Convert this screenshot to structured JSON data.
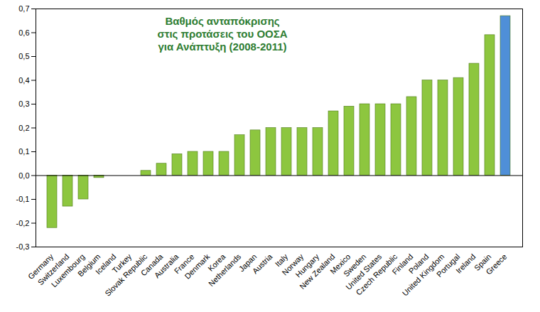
{
  "chart_data": {
    "type": "bar",
    "title": "Βαθμός ανταπόκρισης\nστις προτάσεις του ΟΟΣΑ\nγια Ανάπτυξη (2008-2011)",
    "categories": [
      "Germany",
      "Switzerland",
      "Luxembourg",
      "Belgium",
      "Iceland",
      "Turkey",
      "Slovak Republic",
      "Canada",
      "Australia",
      "France",
      "Denmark",
      "Korea",
      "Netherlands",
      "Japan",
      "Austria",
      "Italy",
      "Norway",
      "Hungary",
      "New Zealand",
      "Mexico",
      "Sweden",
      "United States",
      "Czech Republic",
      "Finland",
      "Poland",
      "United Kingdom",
      "Portugal",
      "Ireland",
      "Spain",
      "Greece"
    ],
    "values": [
      -0.22,
      -0.13,
      -0.1,
      -0.01,
      0,
      0,
      0.02,
      0.05,
      0.09,
      0.1,
      0.1,
      0.1,
      0.17,
      0.19,
      0.2,
      0.2,
      0.2,
      0.2,
      0.27,
      0.29,
      0.3,
      0.3,
      0.3,
      0.33,
      0.4,
      0.4,
      0.41,
      0.47,
      0.59,
      0.67
    ],
    "colors": [
      "#8dc63f",
      "#8dc63f",
      "#8dc63f",
      "#8dc63f",
      "#8dc63f",
      "#8dc63f",
      "#8dc63f",
      "#8dc63f",
      "#8dc63f",
      "#8dc63f",
      "#8dc63f",
      "#8dc63f",
      "#8dc63f",
      "#8dc63f",
      "#8dc63f",
      "#8dc63f",
      "#8dc63f",
      "#8dc63f",
      "#8dc63f",
      "#8dc63f",
      "#8dc63f",
      "#8dc63f",
      "#8dc63f",
      "#8dc63f",
      "#8dc63f",
      "#8dc63f",
      "#8dc63f",
      "#8dc63f",
      "#8dc63f",
      "#4f8fd8"
    ],
    "ylim": [
      -0.3,
      0.7
    ],
    "yticks": [
      {
        "value": -0.3,
        "label": "-0,3"
      },
      {
        "value": -0.2,
        "label": "-0,2"
      },
      {
        "value": -0.1,
        "label": "-0,1"
      },
      {
        "value": 0,
        "label": "0,0"
      },
      {
        "value": 0.1,
        "label": "0,1"
      },
      {
        "value": 0.2,
        "label": "0,2"
      },
      {
        "value": 0.3,
        "label": "0,3"
      },
      {
        "value": 0.4,
        "label": "0,4"
      },
      {
        "value": 0.5,
        "label": "0,5"
      },
      {
        "value": 0.6,
        "label": "0,6"
      },
      {
        "value": 0.7,
        "label": "0,7"
      }
    ],
    "grid": false
  }
}
